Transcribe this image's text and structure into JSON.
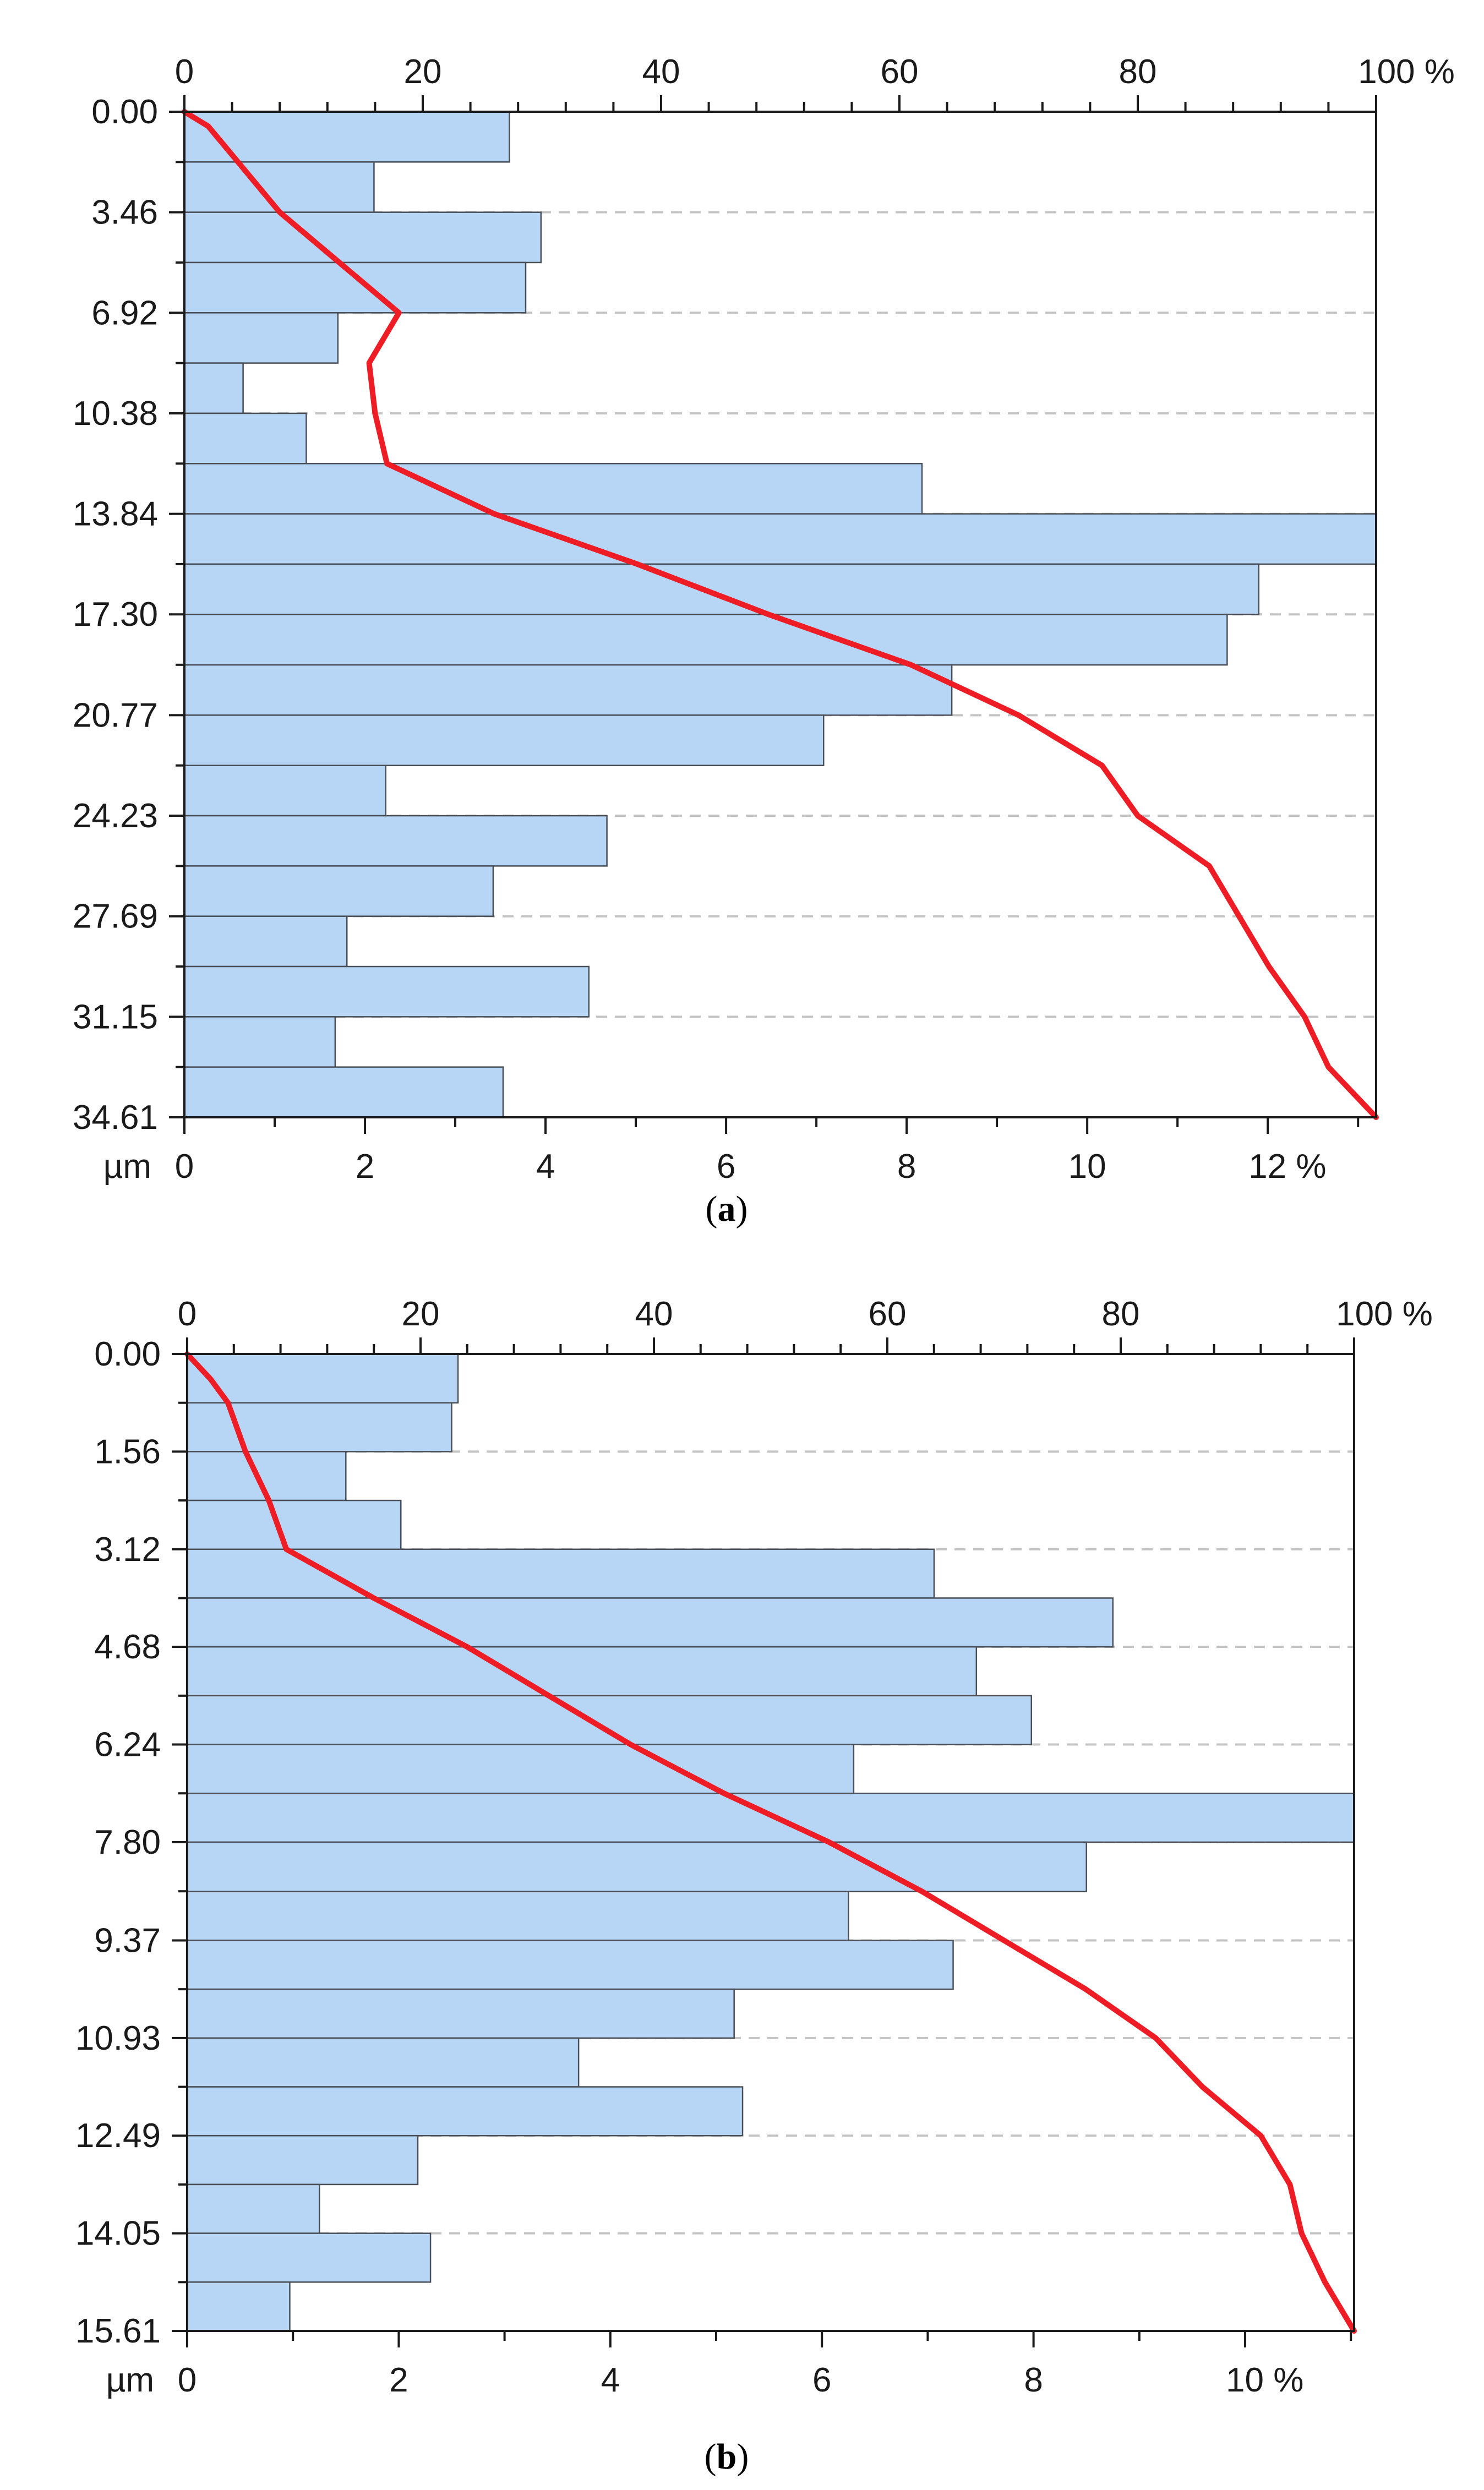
{
  "chart_data": [
    {
      "type": "bar",
      "orientation": "horizontal",
      "caption": "a",
      "bins": [
        {
          "from": 0.0,
          "to": 1.73,
          "value": 3.6
        },
        {
          "from": 1.73,
          "to": 3.46,
          "value": 2.1
        },
        {
          "from": 3.46,
          "to": 5.19,
          "value": 3.95
        },
        {
          "from": 5.19,
          "to": 6.92,
          "value": 3.78
        },
        {
          "from": 6.92,
          "to": 8.65,
          "value": 1.7
        },
        {
          "from": 8.65,
          "to": 10.38,
          "value": 0.65
        },
        {
          "from": 10.38,
          "to": 12.11,
          "value": 1.35
        },
        {
          "from": 12.11,
          "to": 13.84,
          "value": 8.17
        },
        {
          "from": 13.84,
          "to": 15.57,
          "value": 13.2
        },
        {
          "from": 15.57,
          "to": 17.3,
          "value": 11.9
        },
        {
          "from": 17.3,
          "to": 19.04,
          "value": 11.55
        },
        {
          "from": 19.04,
          "to": 20.77,
          "value": 8.5
        },
        {
          "from": 20.77,
          "to": 22.5,
          "value": 7.08
        },
        {
          "from": 22.5,
          "to": 24.23,
          "value": 2.23
        },
        {
          "from": 24.23,
          "to": 25.96,
          "value": 4.68
        },
        {
          "from": 25.96,
          "to": 27.69,
          "value": 3.42
        },
        {
          "from": 27.69,
          "to": 29.42,
          "value": 1.8
        },
        {
          "from": 29.42,
          "to": 31.15,
          "value": 4.48
        },
        {
          "from": 31.15,
          "to": 32.88,
          "value": 1.67
        },
        {
          "from": 32.88,
          "to": 34.61,
          "value": 3.53
        }
      ],
      "cumulative": {
        "x": [
          0,
          0.5,
          1.73,
          3.46,
          5.19,
          6.92,
          8.65,
          10.38,
          12.11,
          13.84,
          15.57,
          17.3,
          19.04,
          20.77,
          22.5,
          24.23,
          25.96,
          27.69,
          29.42,
          31.15,
          32.88,
          34.61
        ],
        "y": [
          0,
          2,
          4.5,
          8,
          13,
          18,
          15.5,
          16,
          17,
          26,
          38,
          49,
          61,
          70,
          77,
          80,
          86,
          88.5,
          91,
          94,
          96,
          100
        ]
      },
      "y_ticks": [
        "0.00",
        "3.46",
        "6.92",
        "10.38",
        "13.84",
        "17.30",
        "20.77",
        "24.23",
        "27.69",
        "31.15",
        "34.61"
      ],
      "y_tick_values": [
        0.0,
        3.46,
        6.92,
        10.38,
        13.84,
        17.3,
        20.77,
        24.23,
        27.69,
        31.15,
        34.61
      ],
      "y_unit": "µm",
      "x_ticks_bottom": [
        "0",
        "2",
        "4",
        "6",
        "8",
        "10",
        "12 %"
      ],
      "x_tick_values_bottom": [
        0,
        2,
        4,
        6,
        8,
        10,
        12
      ],
      "x_ticks_top": [
        "0",
        "20",
        "40",
        "60",
        "80",
        "100 %"
      ],
      "x_tick_values_top": [
        0,
        20,
        40,
        60,
        80,
        100
      ],
      "xlim_bottom": [
        0,
        13.2
      ],
      "xlim_top": [
        0,
        100
      ],
      "ylim": [
        0,
        34.61
      ],
      "minor_ticks_bottom": 1,
      "minor_ticks_top": 4,
      "grid": "dashed horizontal at labeled y ticks",
      "colors": {
        "bar_fill": "#b7d6f5",
        "bar_edge": "#4a4f57",
        "line": "#ee1c25",
        "grid": "#c4c4c4",
        "axis": "#1a1a1a"
      }
    },
    {
      "type": "bar",
      "orientation": "horizontal",
      "caption": "b",
      "bins": [
        {
          "from": 0.0,
          "to": 0.78,
          "value": 2.56
        },
        {
          "from": 0.78,
          "to": 1.56,
          "value": 2.5
        },
        {
          "from": 1.56,
          "to": 2.34,
          "value": 1.5
        },
        {
          "from": 2.34,
          "to": 3.12,
          "value": 2.02
        },
        {
          "from": 3.12,
          "to": 3.9,
          "value": 7.06
        },
        {
          "from": 3.9,
          "to": 4.68,
          "value": 8.75
        },
        {
          "from": 4.68,
          "to": 5.46,
          "value": 7.46
        },
        {
          "from": 5.46,
          "to": 6.24,
          "value": 7.98
        },
        {
          "from": 6.24,
          "to": 7.02,
          "value": 6.3
        },
        {
          "from": 7.02,
          "to": 7.8,
          "value": 11.03
        },
        {
          "from": 7.8,
          "to": 8.59,
          "value": 8.5
        },
        {
          "from": 8.59,
          "to": 9.37,
          "value": 6.25
        },
        {
          "from": 9.37,
          "to": 10.15,
          "value": 7.24
        },
        {
          "from": 10.15,
          "to": 10.93,
          "value": 5.17
        },
        {
          "from": 10.93,
          "to": 11.71,
          "value": 3.7
        },
        {
          "from": 11.71,
          "to": 12.49,
          "value": 5.25
        },
        {
          "from": 12.49,
          "to": 13.27,
          "value": 2.18
        },
        {
          "from": 13.27,
          "to": 14.05,
          "value": 1.25
        },
        {
          "from": 14.05,
          "to": 14.83,
          "value": 2.3
        },
        {
          "from": 14.83,
          "to": 15.61,
          "value": 0.97
        }
      ],
      "cumulative": {
        "x": [
          0,
          0.4,
          0.78,
          1.56,
          2.34,
          3.12,
          3.9,
          4.68,
          5.46,
          6.24,
          7.02,
          7.8,
          8.59,
          9.37,
          10.15,
          10.93,
          11.71,
          12.49,
          13.27,
          14.05,
          14.83,
          15.61
        ],
        "y": [
          0,
          2,
          3.5,
          5,
          7,
          8.5,
          16,
          24,
          31,
          38,
          46,
          55,
          63,
          70,
          77,
          83,
          87,
          92,
          94.5,
          95.5,
          97.5,
          100
        ]
      },
      "y_ticks": [
        "0.00",
        "1.56",
        "3.12",
        "4.68",
        "6.24",
        "7.80",
        "9.37",
        "10.93",
        "12.49",
        "14.05",
        "15.61"
      ],
      "y_tick_values": [
        0.0,
        1.56,
        3.12,
        4.68,
        6.24,
        7.8,
        9.37,
        10.93,
        12.49,
        14.05,
        15.61
      ],
      "y_unit": "µm",
      "x_ticks_bottom": [
        "0",
        "2",
        "4",
        "6",
        "8",
        "10 %"
      ],
      "x_tick_values_bottom": [
        0,
        2,
        4,
        6,
        8,
        10
      ],
      "x_ticks_top": [
        "0",
        "20",
        "40",
        "60",
        "80",
        "100 %"
      ],
      "x_tick_values_top": [
        0,
        20,
        40,
        60,
        80,
        100
      ],
      "xlim_bottom": [
        0,
        11.03
      ],
      "xlim_top": [
        0,
        100
      ],
      "ylim": [
        0,
        15.61
      ],
      "minor_ticks_bottom": 1,
      "minor_ticks_top": 4,
      "grid": "dashed horizontal at labeled y ticks",
      "colors": {
        "bar_fill": "#b7d6f5",
        "bar_edge": "#4a4f57",
        "line": "#ee1c25",
        "grid": "#c4c4c4",
        "axis": "#1a1a1a"
      }
    }
  ]
}
